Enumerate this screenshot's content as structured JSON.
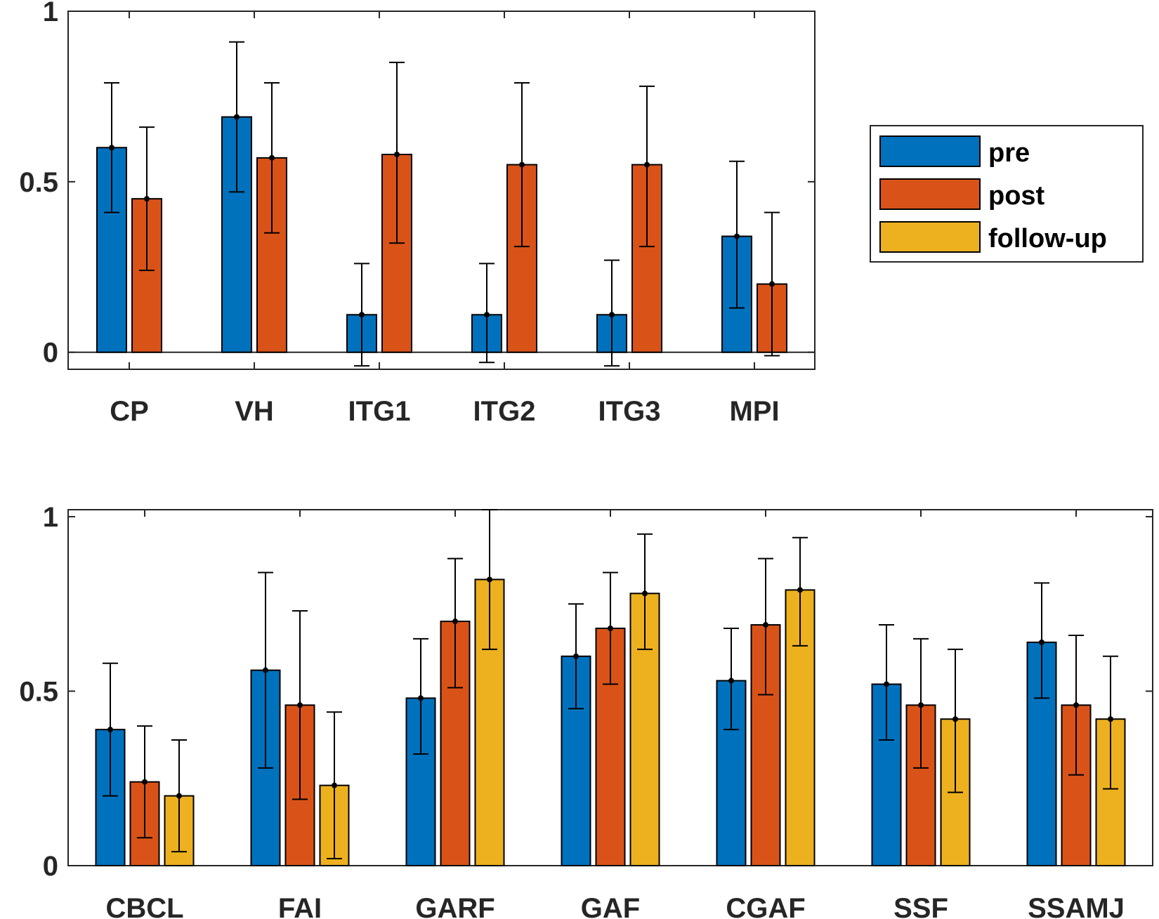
{
  "chart_data": [
    {
      "type": "bar",
      "title": "",
      "xlabel": "",
      "ylabel": "",
      "ylim": [
        -0.05,
        1.0
      ],
      "yticks": [
        0,
        0.5,
        1
      ],
      "ytick_labels": [
        "0",
        "0.5",
        "1"
      ],
      "categories": [
        "CP",
        "VH",
        "ITG1",
        "ITG2",
        "ITG3",
        "MPI"
      ],
      "grid": false,
      "zero_line": true,
      "series": [
        {
          "name": "pre",
          "color": "#0072BD",
          "values": [
            0.6,
            0.69,
            0.11,
            0.11,
            0.11,
            0.34
          ],
          "err_low": [
            0.41,
            0.47,
            -0.04,
            -0.03,
            -0.04,
            0.13
          ],
          "err_high": [
            0.79,
            0.91,
            0.26,
            0.26,
            0.27,
            0.56
          ]
        },
        {
          "name": "post",
          "color": "#D95319",
          "values": [
            0.45,
            0.57,
            0.58,
            0.55,
            0.55,
            0.2
          ],
          "err_low": [
            0.24,
            0.35,
            0.32,
            0.31,
            0.31,
            -0.01
          ],
          "err_high": [
            0.66,
            0.79,
            0.85,
            0.79,
            0.78,
            0.41
          ]
        }
      ]
    },
    {
      "type": "bar",
      "title": "",
      "xlabel": "",
      "ylabel": "",
      "ylim": [
        0,
        1.02
      ],
      "yticks": [
        0,
        0.5,
        1
      ],
      "ytick_labels": [
        "0",
        "0.5",
        "1"
      ],
      "categories": [
        "CBCL",
        "FAI",
        "GARF",
        "GAF",
        "CGAF",
        "SSF",
        "SSAMJ"
      ],
      "grid": false,
      "series": [
        {
          "name": "pre",
          "color": "#0072BD",
          "values": [
            0.39,
            0.56,
            0.48,
            0.6,
            0.53,
            0.52,
            0.64
          ],
          "err_low": [
            0.2,
            0.28,
            0.32,
            0.45,
            0.39,
            0.36,
            0.48
          ],
          "err_high": [
            0.58,
            0.84,
            0.65,
            0.75,
            0.68,
            0.69,
            0.81
          ]
        },
        {
          "name": "post",
          "color": "#D95319",
          "values": [
            0.24,
            0.46,
            0.7,
            0.68,
            0.69,
            0.46,
            0.46
          ],
          "err_low": [
            0.08,
            0.19,
            0.51,
            0.52,
            0.49,
            0.28,
            0.26
          ],
          "err_high": [
            0.4,
            0.73,
            0.88,
            0.84,
            0.88,
            0.65,
            0.66
          ]
        },
        {
          "name": "follow-up",
          "color": "#EDB120",
          "values": [
            0.2,
            0.23,
            0.82,
            0.78,
            0.79,
            0.42,
            0.42
          ],
          "err_low": [
            0.04,
            0.02,
            0.62,
            0.62,
            0.63,
            0.21,
            0.22
          ],
          "err_high": [
            0.36,
            0.44,
            1.02,
            0.95,
            0.94,
            0.62,
            0.6
          ]
        }
      ]
    }
  ],
  "legend": {
    "placement": "right of top chart",
    "entries": [
      {
        "label": "pre",
        "color": "#0072BD"
      },
      {
        "label": "post",
        "color": "#D95319"
      },
      {
        "label": "follow-up",
        "color": "#EDB120"
      }
    ]
  }
}
